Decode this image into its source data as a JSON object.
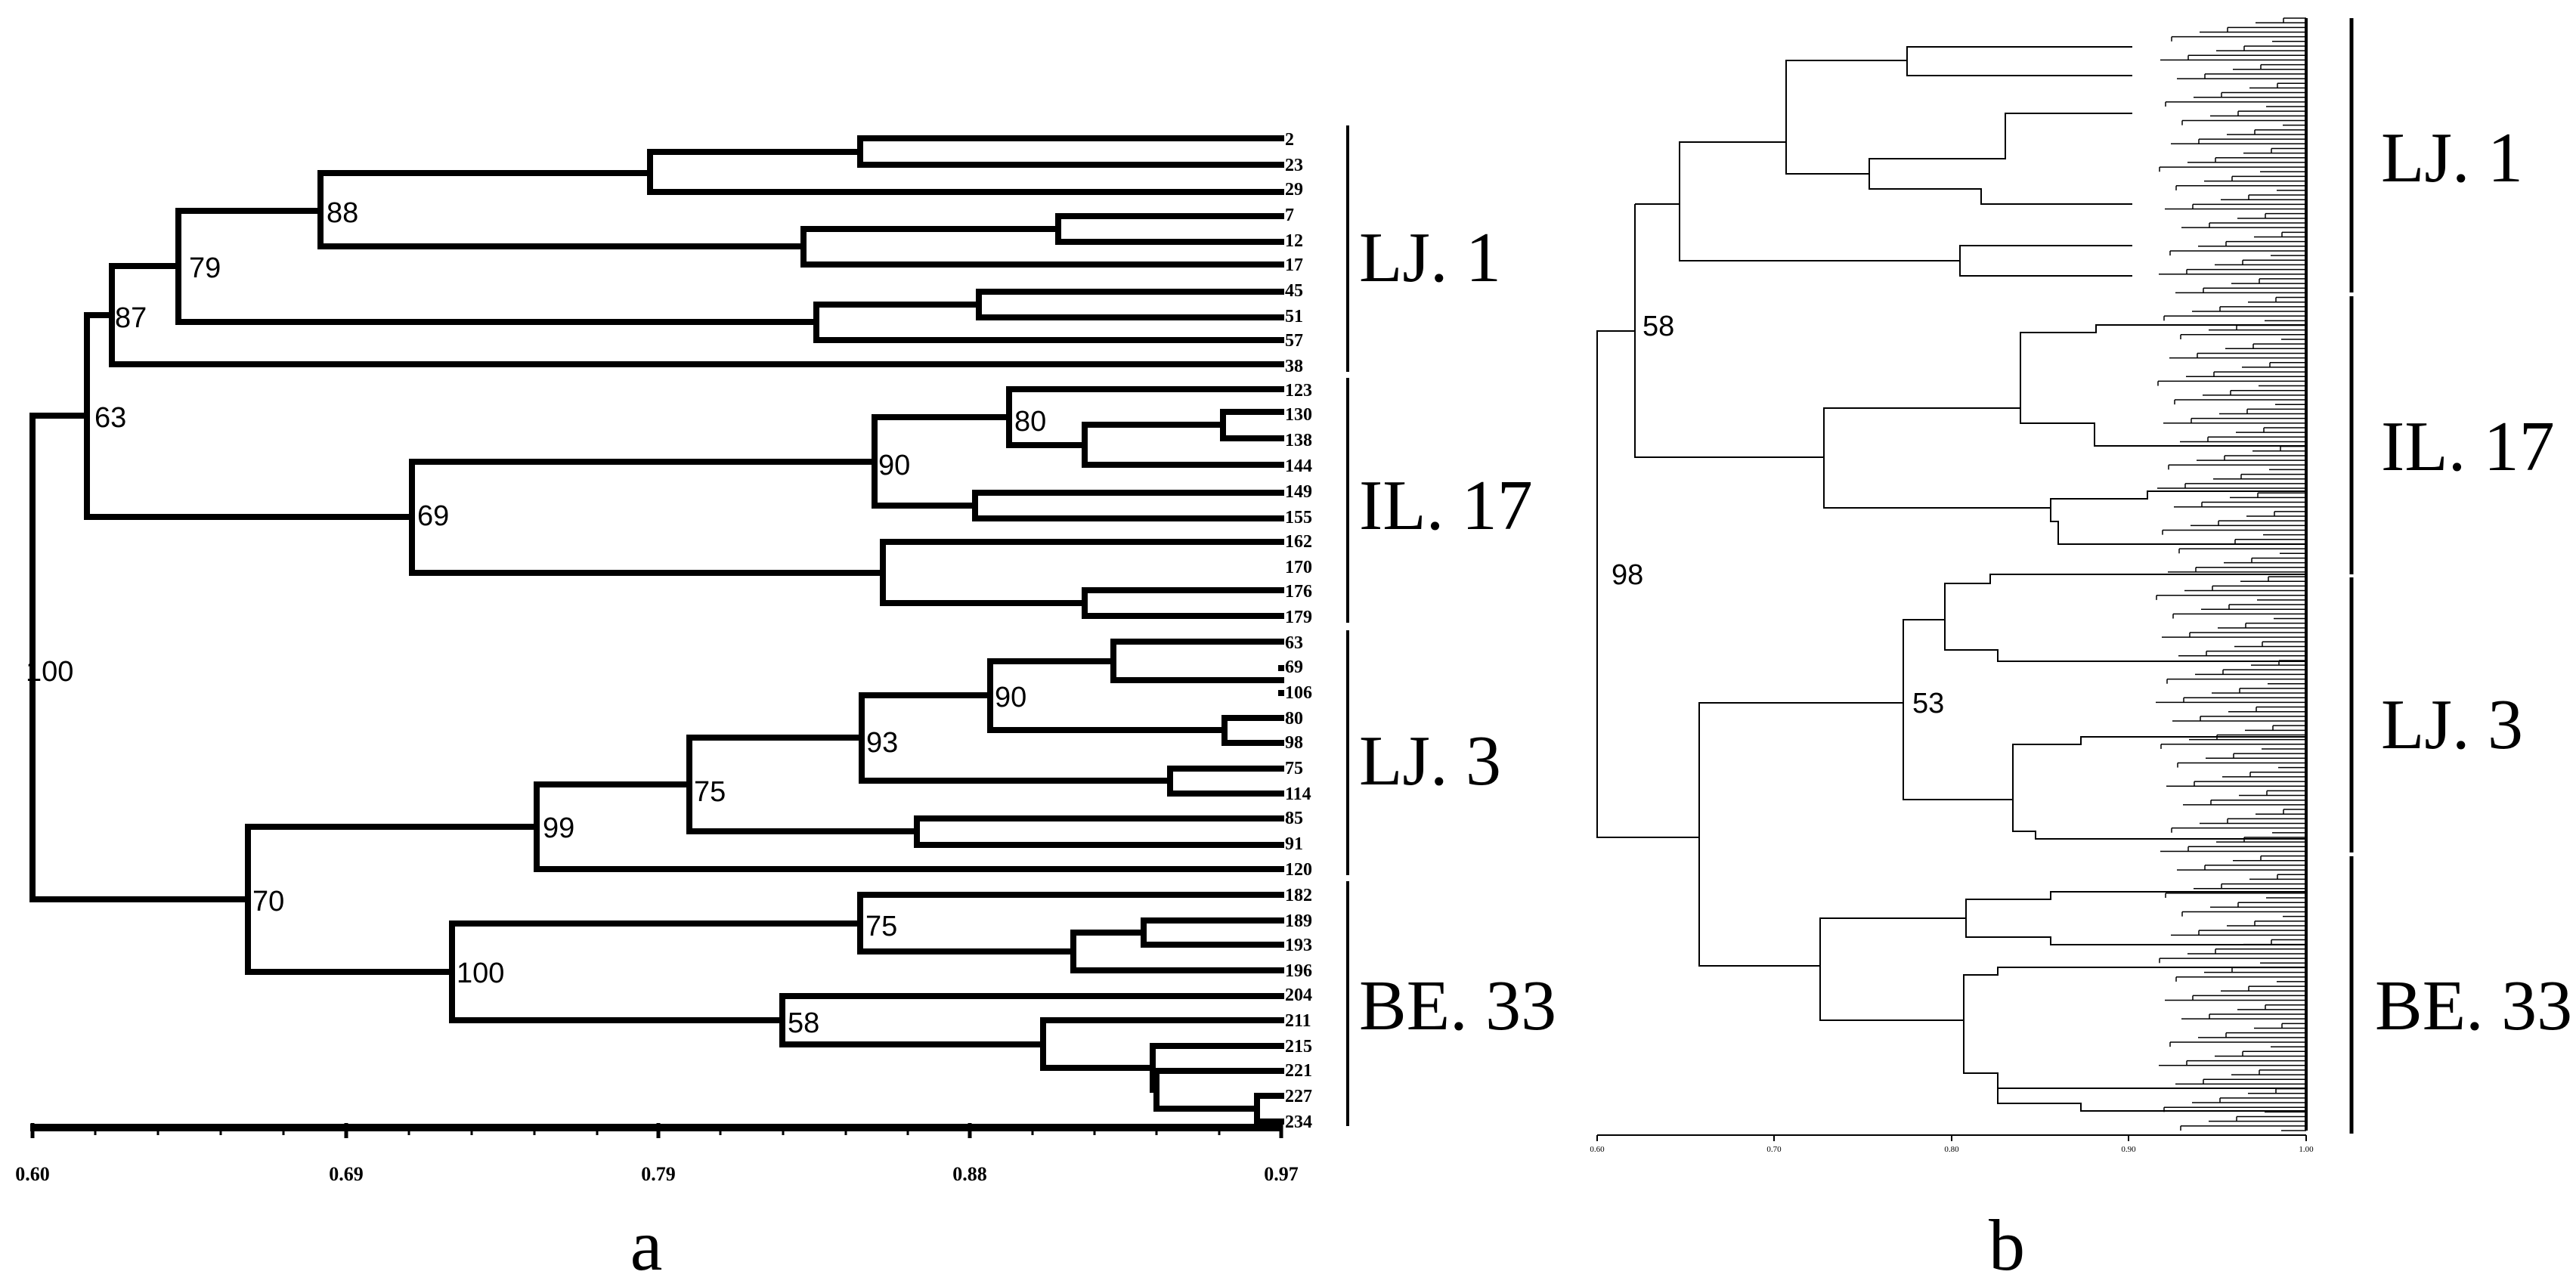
{
  "panel_a": {
    "label": "a",
    "axis_ticks": [
      "0.60",
      "0.69",
      "0.79",
      "0.88",
      "0.97"
    ],
    "groups": [
      "LJ. 1",
      "IL. 17",
      "LJ. 3",
      "BE. 33"
    ],
    "leaves": [
      "2",
      "23",
      "29",
      "7",
      "12",
      "17",
      "45",
      "51",
      "57",
      "38",
      "123",
      "130",
      "138",
      "144",
      "149",
      "155",
      "162",
      "170",
      "176",
      "179",
      "63",
      "69",
      "106",
      "80",
      "98",
      "75",
      "114",
      "85",
      "91",
      "120",
      "182",
      "189",
      "193",
      "196",
      "204",
      "211",
      "215",
      "221",
      "227",
      "234"
    ],
    "nodes": [
      "88",
      "79",
      "87",
      "63",
      "80",
      "90",
      "69",
      "90",
      "93",
      "75",
      "99",
      "100",
      "70",
      "75",
      "100",
      "58"
    ]
  },
  "panel_b": {
    "label": "b",
    "axis_ticks": [
      "0.60",
      "0.70",
      "0.80",
      "0.90",
      "1.00"
    ],
    "groups": [
      "LJ. 1",
      "IL. 17",
      "LJ. 3",
      "BE. 33"
    ],
    "nodes": [
      "58",
      "98",
      "53"
    ]
  }
}
